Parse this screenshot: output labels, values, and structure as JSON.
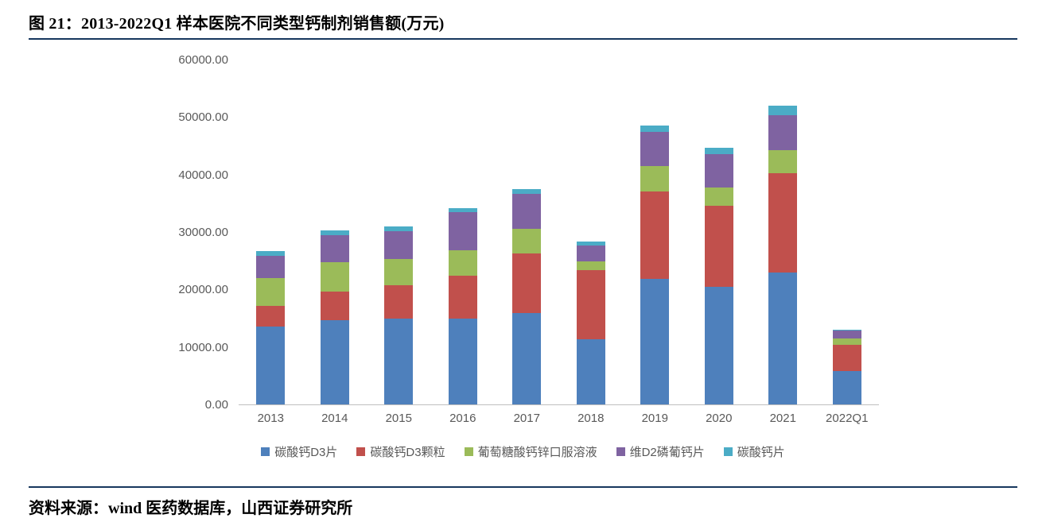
{
  "figure": {
    "title": "图 21：2013-2022Q1 样本医院不同类型钙制剂销售额(万元)",
    "source": "资料来源：wind 医药数据库，山西证券研究所"
  },
  "chart_data": {
    "type": "bar",
    "stacked": true,
    "title": "2013-2022Q1 样本医院不同类型钙制剂销售额(万元)",
    "xlabel": "",
    "ylabel": "",
    "ylim": [
      0,
      60000
    ],
    "y_tick_labels": [
      "0.00",
      "10000.00",
      "20000.00",
      "30000.00",
      "40000.00",
      "50000.00",
      "60000.00"
    ],
    "grid": false,
    "legend_position": "bottom",
    "categories": [
      "2013",
      "2014",
      "2015",
      "2016",
      "2017",
      "2018",
      "2019",
      "2020",
      "2021",
      "2022Q1"
    ],
    "series": [
      {
        "name": "碳酸钙D3片",
        "color": "#4E80BC",
        "values": [
          13600,
          14700,
          15000,
          15000,
          15900,
          11400,
          21900,
          20500,
          23000,
          5800
        ]
      },
      {
        "name": "碳酸钙D3颗粒",
        "color": "#C1504C",
        "values": [
          3600,
          5000,
          5800,
          7400,
          10400,
          11900,
          15200,
          14100,
          17300,
          4600
        ]
      },
      {
        "name": "葡萄糖酸钙锌口服溶液",
        "color": "#9BBB59",
        "values": [
          4800,
          5100,
          4500,
          4500,
          4200,
          1600,
          4400,
          3200,
          3900,
          1100
        ]
      },
      {
        "name": "维D2磷葡钙片",
        "color": "#7F63A1",
        "values": [
          3900,
          4700,
          4900,
          6600,
          6200,
          2700,
          6000,
          5800,
          6200,
          1300
        ]
      },
      {
        "name": "碳酸钙片",
        "color": "#4BACC6",
        "values": [
          800,
          800,
          800,
          700,
          800,
          800,
          1000,
          1000,
          1600,
          200
        ]
      }
    ]
  }
}
